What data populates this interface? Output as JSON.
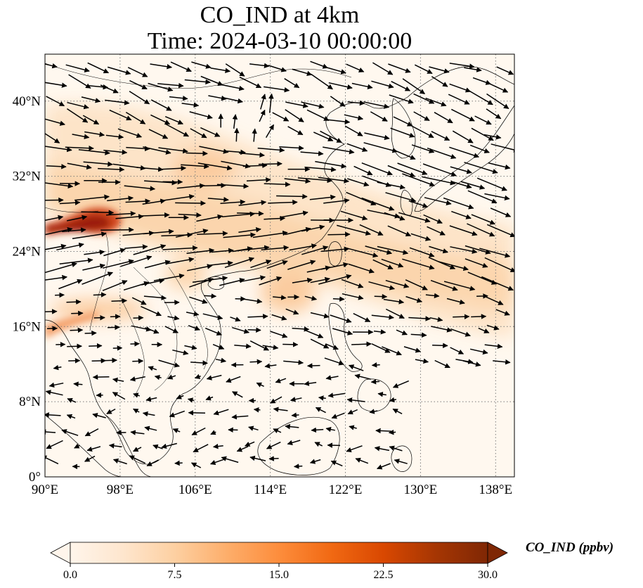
{
  "title": {
    "line1": "CO_IND at 4km",
    "line2": "Time: 2024-03-10 00:00:00"
  },
  "map": {
    "extent": {
      "lon": [
        90,
        140
      ],
      "lat": [
        0,
        45
      ]
    },
    "gridlines": true,
    "lon_ticks": [
      {
        "value": 90,
        "label": "90°E"
      },
      {
        "value": 98,
        "label": "98°E"
      },
      {
        "value": 106,
        "label": "106°E"
      },
      {
        "value": 114,
        "label": "114°E"
      },
      {
        "value": 122,
        "label": "122°E"
      },
      {
        "value": 130,
        "label": "130°E"
      },
      {
        "value": 138,
        "label": "138°E"
      }
    ],
    "lat_ticks": [
      {
        "value": 0,
        "label": "0°"
      },
      {
        "value": 8,
        "label": "8°N"
      },
      {
        "value": 16,
        "label": "16°N"
      },
      {
        "value": 24,
        "label": "24°N"
      },
      {
        "value": 32,
        "label": "32°N"
      },
      {
        "value": 40,
        "label": "40°N"
      }
    ],
    "field_variable": "CO_IND",
    "plumes": [
      {
        "lon": 94,
        "lat": 27,
        "value": 30
      },
      {
        "lon": 91,
        "lat": 15.5,
        "value": 18
      },
      {
        "lon": 113,
        "lat": 28,
        "value": 6
      },
      {
        "lon": 120,
        "lat": 23,
        "value": 5
      },
      {
        "lon": 135,
        "lat": 21,
        "value": 5
      }
    ],
    "wind_field_shown": true
  },
  "colorbar": {
    "label": "CO_IND (ppbv)",
    "min": 0,
    "max": 30,
    "extend": "both",
    "colors": [
      "#fff5eb",
      "#fee6ce",
      "#fdd0a2",
      "#fdae6b",
      "#fd8d3c",
      "#f16913",
      "#d94801",
      "#a63603",
      "#7f2704"
    ],
    "ticks": [
      {
        "value": 0,
        "label": "0.0"
      },
      {
        "value": 7.5,
        "label": "7.5"
      },
      {
        "value": 15,
        "label": "15.0"
      },
      {
        "value": 22.5,
        "label": "22.5"
      },
      {
        "value": 30,
        "label": "30.0"
      }
    ]
  }
}
